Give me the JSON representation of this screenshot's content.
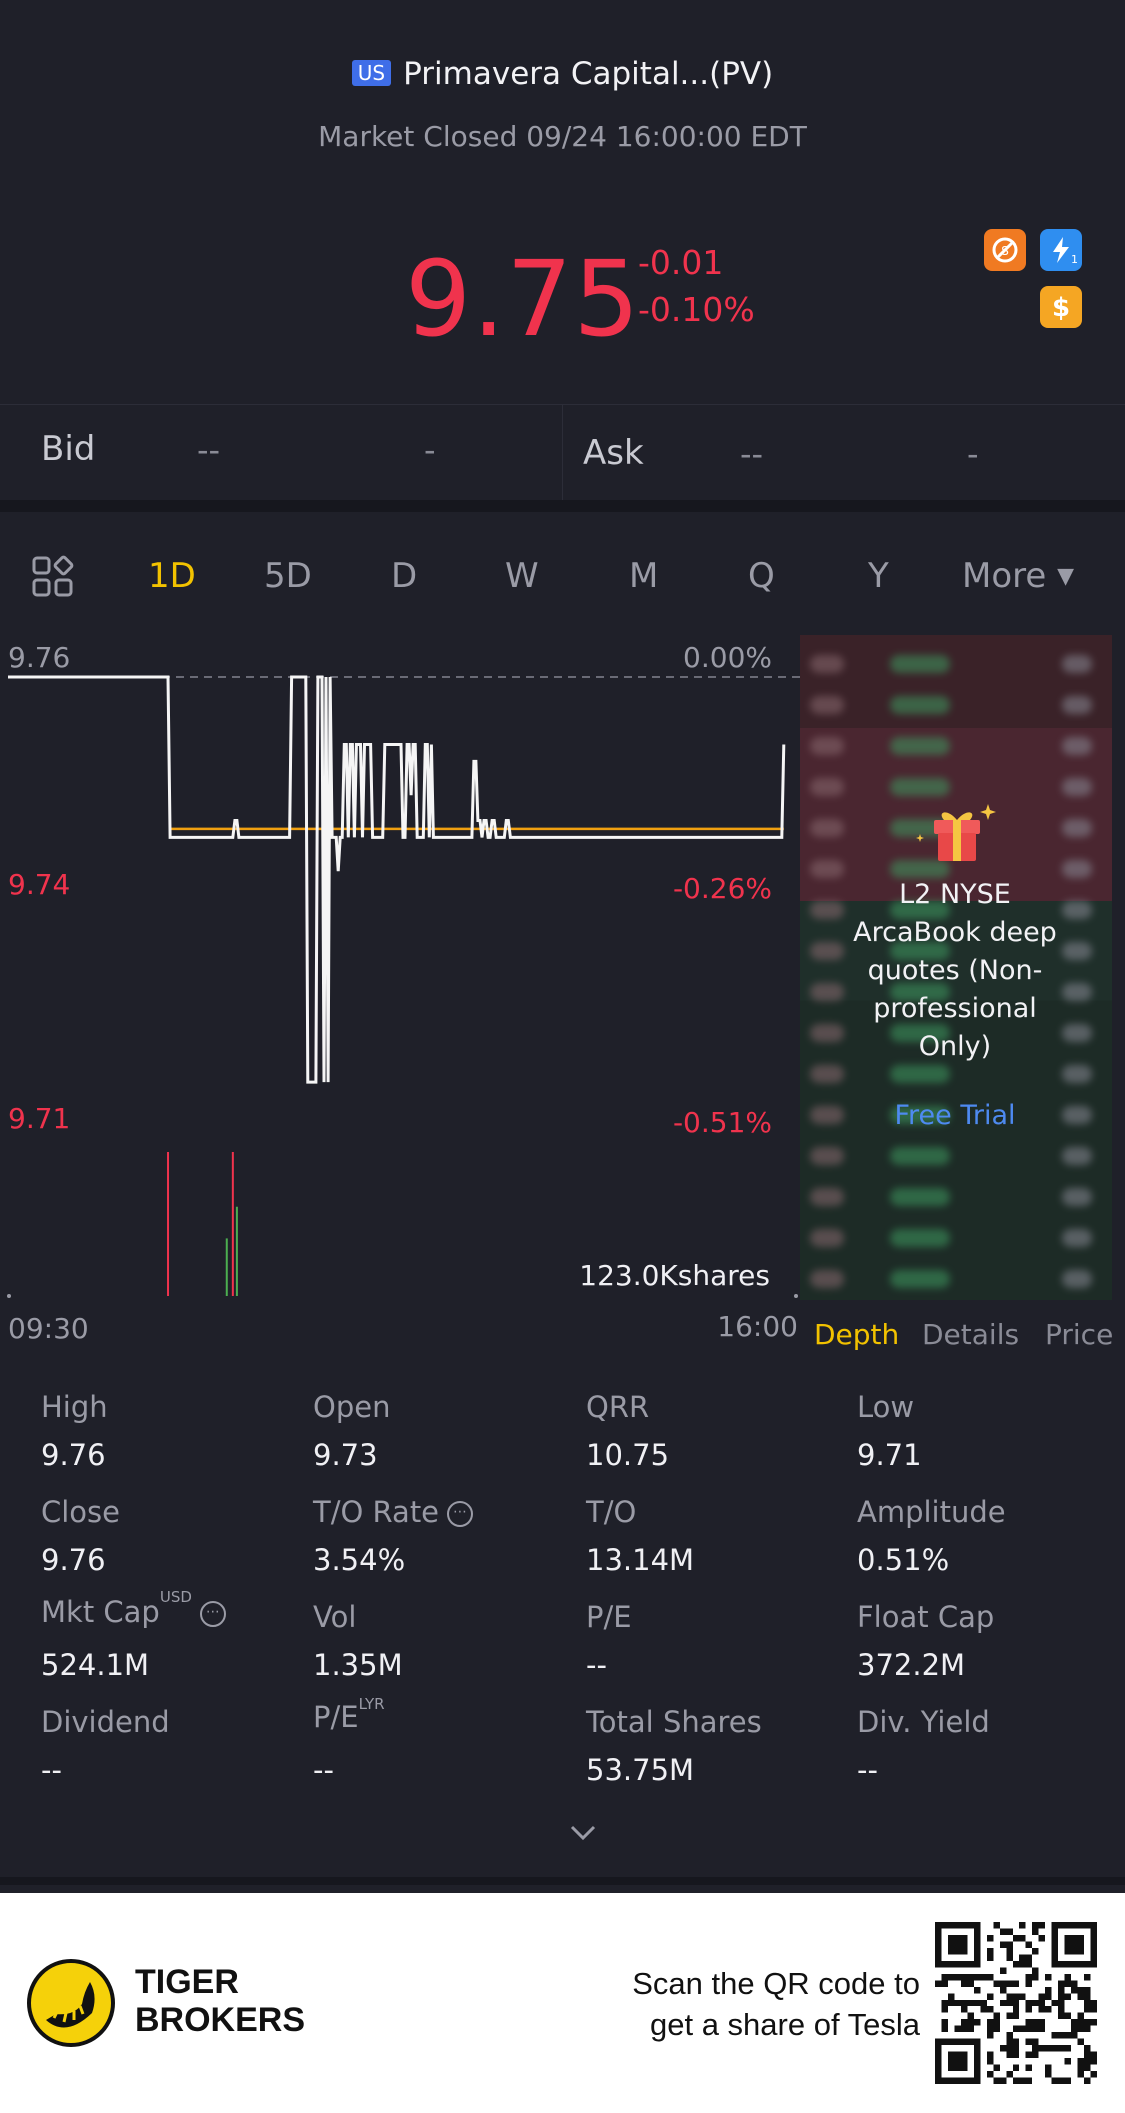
{
  "header": {
    "market_badge": "US",
    "title": "Primavera Capital...(PV)",
    "status": "Market Closed 09/24 16:00:00 EDT"
  },
  "quote": {
    "price": "9.75",
    "change": "-0.01",
    "change_pct": "-0.10%",
    "icons": [
      "no-short-icon",
      "lightning-l1-icon",
      "dollar-icon"
    ]
  },
  "bid_ask": {
    "bid_label": "Bid",
    "bid_price": "--",
    "bid_size": "-",
    "ask_label": "Ask",
    "ask_price": "--",
    "ask_size": "-"
  },
  "period_tabs": {
    "items": [
      "1D",
      "5D",
      "D",
      "W",
      "M",
      "Q",
      "Y"
    ],
    "more": "More",
    "active": "1D"
  },
  "chart_data": {
    "type": "line",
    "y_left_ticks": [
      "9.76",
      "9.74",
      "9.71"
    ],
    "y_right_ticks": [
      "0.00%",
      "-0.26%",
      "-0.51%"
    ],
    "x_ticks": [
      "09:30",
      "16:00"
    ],
    "volume_label": "123.0Kshares",
    "ylim": [
      9.71,
      9.76
    ],
    "prev_close": 9.76,
    "avg_price": 9.742,
    "colors": {
      "price_line": "#f5f5f5",
      "avg_line": "#f0a010",
      "up": "#4caf50",
      "down": "#f0334d"
    },
    "series": [
      {
        "values": [
          9.76,
          9.76,
          9.76,
          9.76,
          9.76,
          9.76,
          9.76,
          9.76,
          9.76,
          9.76,
          9.76,
          9.76,
          9.76,
          9.76,
          9.76,
          9.76,
          9.76,
          9.76,
          9.76,
          9.76,
          9.76,
          9.76,
          9.76,
          9.76,
          9.76,
          9.76,
          9.76,
          9.76,
          9.76,
          9.76,
          9.76,
          9.76,
          9.76,
          9.76,
          9.76,
          9.76,
          9.76,
          9.76,
          9.76,
          9.76,
          9.76,
          9.76,
          9.76,
          9.76,
          9.76,
          9.76,
          9.76,
          9.76,
          9.76,
          9.76,
          9.76,
          9.76,
          9.76,
          9.76,
          9.76,
          9.76,
          9.76,
          9.76,
          9.76,
          9.76,
          9.76,
          9.76,
          9.76,
          9.76,
          9.76,
          9.76,
          9.76,
          9.76,
          9.76,
          9.76,
          9.76,
          9.76,
          9.76,
          9.76,
          9.76,
          9.76,
          9.76,
          9.76,
          9.76,
          9.76,
          9.741,
          9.741,
          9.741,
          9.741,
          9.741,
          9.741,
          9.741,
          9.741,
          9.741,
          9.741,
          9.741,
          9.741,
          9.741,
          9.741,
          9.741,
          9.741,
          9.741,
          9.741,
          9.741,
          9.741,
          9.741,
          9.741,
          9.741,
          9.741,
          9.741,
          9.741,
          9.741,
          9.741,
          9.741,
          9.741,
          9.741,
          9.741,
          9.743,
          9.743,
          9.741,
          9.741,
          9.741,
          9.741,
          9.741,
          9.741,
          9.741,
          9.741,
          9.741,
          9.741,
          9.741,
          9.741,
          9.741,
          9.741,
          9.741,
          9.741,
          9.741,
          9.741,
          9.741,
          9.741,
          9.741,
          9.741,
          9.741,
          9.741,
          9.741,
          9.741,
          9.76,
          9.76,
          9.76,
          9.76,
          9.76,
          9.76,
          9.76,
          9.76,
          9.712,
          9.712,
          9.712,
          9.712,
          9.712,
          9.76,
          9.76,
          9.76,
          9.712,
          9.76,
          9.712,
          9.76,
          9.741,
          9.741,
          9.741,
          9.737,
          9.741,
          9.741,
          9.752,
          9.752,
          9.741,
          9.752,
          9.752,
          9.741,
          9.752,
          9.752,
          9.752,
          9.741,
          9.752,
          9.752,
          9.752,
          9.752,
          9.741,
          9.741,
          9.741,
          9.741,
          9.741,
          9.741,
          9.752,
          9.752,
          9.752,
          9.752,
          9.752,
          9.752,
          9.752,
          9.752,
          9.752,
          9.741,
          9.741,
          9.752,
          9.752,
          9.746,
          9.752,
          9.752,
          9.741,
          9.741,
          9.741,
          9.741,
          9.752,
          9.752,
          9.741,
          9.752,
          9.741,
          9.741,
          9.741,
          9.741,
          9.741,
          9.741,
          9.741,
          9.741,
          9.741,
          9.741,
          9.741,
          9.741,
          9.741,
          9.741,
          9.741,
          9.741,
          9.741,
          9.741,
          9.741,
          9.741,
          9.75,
          9.75,
          9.743,
          9.743,
          9.741,
          9.743,
          9.743,
          9.741,
          9.741,
          9.743,
          9.743,
          9.741,
          9.741,
          9.741,
          9.741,
          9.741,
          9.743,
          9.743,
          9.741,
          9.741,
          9.741,
          9.741,
          9.741,
          9.741,
          9.741,
          9.741,
          9.741,
          9.741,
          9.741,
          9.741,
          9.741,
          9.741,
          9.741,
          9.741,
          9.741,
          9.741,
          9.741,
          9.741,
          9.741,
          9.741,
          9.741,
          9.741,
          9.741,
          9.741,
          9.741,
          9.741,
          9.741,
          9.741,
          9.741,
          9.741,
          9.741,
          9.741,
          9.741,
          9.741,
          9.741,
          9.741,
          9.741,
          9.741,
          9.741,
          9.741,
          9.741,
          9.741,
          9.741,
          9.741,
          9.741,
          9.741,
          9.741,
          9.741,
          9.741,
          9.741,
          9.741,
          9.741,
          9.741,
          9.741,
          9.741,
          9.741,
          9.741,
          9.741,
          9.741,
          9.741,
          9.741,
          9.741,
          9.741,
          9.741,
          9.741,
          9.741,
          9.741,
          9.741,
          9.741,
          9.741,
          9.741,
          9.741,
          9.741,
          9.741,
          9.741,
          9.741,
          9.741,
          9.741,
          9.741,
          9.741,
          9.741,
          9.741,
          9.741,
          9.741,
          9.741,
          9.741,
          9.741,
          9.741,
          9.741,
          9.741,
          9.741,
          9.741,
          9.741,
          9.741,
          9.741,
          9.741,
          9.741,
          9.741,
          9.741,
          9.741,
          9.741,
          9.741,
          9.741,
          9.741,
          9.741,
          9.741,
          9.741,
          9.741,
          9.741,
          9.741,
          9.741,
          9.741,
          9.741,
          9.741,
          9.741,
          9.741,
          9.741,
          9.741,
          9.741,
          9.741,
          9.741,
          9.741,
          9.741,
          9.741,
          9.741,
          9.741,
          9.741,
          9.741,
          9.741,
          9.741,
          9.741,
          9.741,
          9.741,
          9.752
        ]
      }
    ],
    "volume_bars": [
      {
        "minute": 79,
        "level": 1.0,
        "dir": "down"
      },
      {
        "minute": 108,
        "level": 0.4,
        "dir": "up"
      },
      {
        "minute": 111,
        "level": 1.0,
        "dir": "down"
      },
      {
        "minute": 113,
        "level": 0.62,
        "dir": "up"
      }
    ]
  },
  "depth_panel": {
    "promo_lines": [
      "L2 NYSE",
      "ArcaBook deep",
      "quotes (Non-",
      "professional",
      "Only)"
    ],
    "trial": "Free Trial",
    "tabs": [
      "Depth",
      "Details",
      "Price"
    ]
  },
  "stats": [
    {
      "label": "High",
      "value": "9.76"
    },
    {
      "label": "Open",
      "value": "9.73"
    },
    {
      "label": "QRR",
      "value": "10.75"
    },
    {
      "label": "Low",
      "value": "9.71"
    },
    {
      "label": "Close",
      "value": "9.76"
    },
    {
      "label": "T/O Rate",
      "value": "3.54%"
    },
    {
      "label": "T/O",
      "value": "13.14M"
    },
    {
      "label": "Amplitude",
      "value": "0.51%"
    },
    {
      "label": "Mkt Cap",
      "value": "524.1M",
      "sup": "USD"
    },
    {
      "label": "Vol",
      "value": "1.35M"
    },
    {
      "label": "P/E",
      "value": "--"
    },
    {
      "label": "Float Cap",
      "value": "372.2M"
    },
    {
      "label": "Dividend",
      "value": "--"
    },
    {
      "label": "P/E",
      "value": "--",
      "sup": "LYR"
    },
    {
      "label": "Total Shares",
      "value": "53.75M"
    },
    {
      "label": "Div. Yield",
      "value": "--"
    }
  ],
  "footer": {
    "brand_line1": "TIGER",
    "brand_line2": "BROKERS",
    "qr_line1": "Scan the QR code to",
    "qr_line2": "get a share of Tesla"
  }
}
